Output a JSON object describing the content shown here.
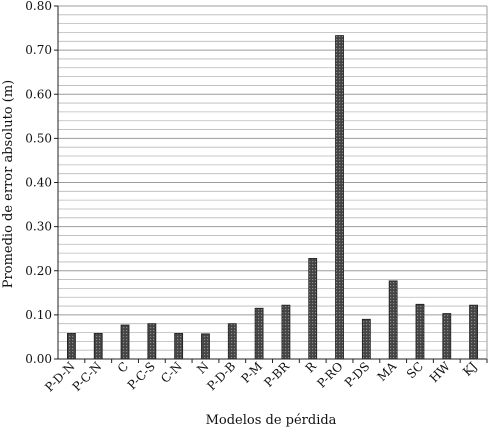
{
  "chart_data": {
    "type": "bar",
    "title": "",
    "xlabel": "Modelos de pérdida",
    "ylabel": "Promedio de error absoluto (m)",
    "ylim": [
      0,
      0.8
    ],
    "grid": true,
    "bar_color": "#3c3c3c",
    "grid_color": "#b9b9b9",
    "yticks": [
      "0.00",
      "0.10",
      "0.20",
      "0.30",
      "0.40",
      "0.50",
      "0.60",
      "0.70",
      "0.80"
    ],
    "categories": [
      "P-D-N",
      "P-C-N",
      "C",
      "P-C-S",
      "C-N",
      "N",
      "P-D-B",
      "P-M",
      "P-BR",
      "R",
      "P-RO",
      "P-DS",
      "MA",
      "SC",
      "HW",
      "KJ"
    ],
    "values": [
      0.058,
      0.058,
      0.077,
      0.08,
      0.058,
      0.057,
      0.08,
      0.115,
      0.122,
      0.228,
      0.733,
      0.09,
      0.177,
      0.124,
      0.103,
      0.122
    ]
  }
}
